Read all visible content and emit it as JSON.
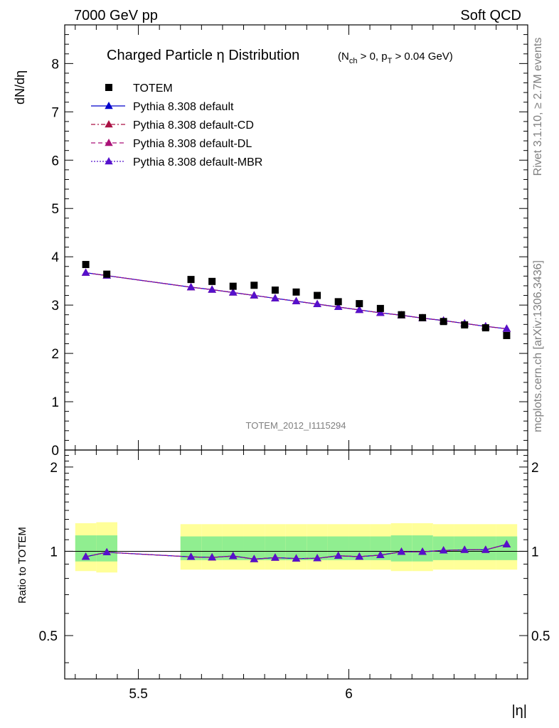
{
  "header": {
    "left": "7000 GeV pp",
    "right": "Soft QCD"
  },
  "side_label_top": "Rivet 3.1.10, ≥ 2.7M events",
  "side_label_bottom": "mcplots.cern.ch [arXiv:1306.3436]",
  "chart_data": {
    "type": "scatter",
    "title_main": "Charged Particle η Distribution",
    "title_sub": "(N_ch > 0, p_T > 0.04 GeV)",
    "title_sub_parts": {
      "n": "N",
      "ch": "ch",
      "mid": " > 0, p",
      "t": "T",
      "end": " > 0.04 GeV)",
      "open": "("
    },
    "watermark": "TOTEM_2012_I1115294",
    "xlabel": "|η|",
    "ylabel": "dN/dη",
    "ratio_ylabel": "Ratio to TOTEM",
    "xlim": [
      5.325,
      6.425
    ],
    "ylim": [
      0,
      8.8
    ],
    "ratio_ylim": [
      0.35,
      2.3
    ],
    "x_ticks": [
      "5.5",
      "6"
    ],
    "y_ticks": [
      "0",
      "1",
      "2",
      "3",
      "4",
      "5",
      "6",
      "7",
      "8"
    ],
    "ratio_ticks": [
      "0.5",
      "1",
      "2"
    ],
    "x": [
      5.375,
      5.425,
      5.625,
      5.675,
      5.725,
      5.775,
      5.825,
      5.875,
      5.925,
      5.975,
      6.025,
      6.075,
      6.125,
      6.175,
      6.225,
      6.275,
      6.325,
      6.375
    ],
    "bin_edges": [
      [
        5.35,
        5.4
      ],
      [
        5.4,
        5.45
      ],
      [
        5.6,
        5.65
      ],
      [
        5.65,
        5.7
      ],
      [
        5.7,
        5.75
      ],
      [
        5.75,
        5.8
      ],
      [
        5.8,
        5.85
      ],
      [
        5.85,
        5.9
      ],
      [
        5.9,
        5.95
      ],
      [
        5.95,
        6.0
      ],
      [
        6.0,
        6.05
      ],
      [
        6.05,
        6.1
      ],
      [
        6.1,
        6.15
      ],
      [
        6.15,
        6.2
      ],
      [
        6.2,
        6.25
      ],
      [
        6.25,
        6.3
      ],
      [
        6.3,
        6.35
      ],
      [
        6.35,
        6.4
      ]
    ],
    "series": [
      {
        "name": "TOTEM",
        "style": "data",
        "color": "#000000",
        "values": [
          3.84,
          3.64,
          3.53,
          3.49,
          3.39,
          3.41,
          3.31,
          3.27,
          3.2,
          3.07,
          3.03,
          2.93,
          2.8,
          2.74,
          2.66,
          2.59,
          2.53,
          2.37
        ]
      },
      {
        "name": "Pythia 8.308 default",
        "style": "solid",
        "color": "#0000cc",
        "values": [
          3.67,
          3.61,
          3.37,
          3.32,
          3.26,
          3.2,
          3.14,
          3.08,
          3.02,
          2.96,
          2.9,
          2.84,
          2.79,
          2.73,
          2.68,
          2.62,
          2.56,
          2.51
        ]
      },
      {
        "name": "Pythia 8.308 default-CD",
        "style": "dashdot",
        "color": "#aa1144",
        "values": [
          3.67,
          3.61,
          3.37,
          3.32,
          3.26,
          3.2,
          3.14,
          3.08,
          3.02,
          2.96,
          2.9,
          2.84,
          2.79,
          2.73,
          2.68,
          2.62,
          2.56,
          2.51
        ]
      },
      {
        "name": "Pythia 8.308 default-DL",
        "style": "dashed",
        "color": "#aa1177",
        "values": [
          3.67,
          3.61,
          3.37,
          3.32,
          3.26,
          3.2,
          3.14,
          3.08,
          3.02,
          2.96,
          2.9,
          2.84,
          2.79,
          2.73,
          2.68,
          2.62,
          2.56,
          2.51
        ]
      },
      {
        "name": "Pythia 8.308 default-MBR",
        "style": "dotted",
        "color": "#5511cc",
        "values": [
          3.67,
          3.61,
          3.37,
          3.32,
          3.26,
          3.2,
          3.14,
          3.08,
          3.02,
          2.96,
          2.9,
          2.84,
          2.79,
          2.73,
          2.68,
          2.62,
          2.56,
          2.51
        ]
      }
    ],
    "ratio_values": [
      0.956,
      0.992,
      0.955,
      0.951,
      0.962,
      0.938,
      0.949,
      0.942,
      0.944,
      0.964,
      0.957,
      0.969,
      0.996,
      0.996,
      1.007,
      1.012,
      1.012,
      1.059
    ],
    "ratio_band_stat": [
      [
        0.92,
        1.14
      ],
      [
        0.92,
        1.14
      ],
      [
        0.93,
        1.13
      ],
      [
        0.93,
        1.13
      ],
      [
        0.93,
        1.13
      ],
      [
        0.93,
        1.13
      ],
      [
        0.93,
        1.13
      ],
      [
        0.93,
        1.13
      ],
      [
        0.93,
        1.13
      ],
      [
        0.93,
        1.13
      ],
      [
        0.93,
        1.13
      ],
      [
        0.93,
        1.13
      ],
      [
        0.92,
        1.14
      ],
      [
        0.92,
        1.14
      ],
      [
        0.93,
        1.13
      ],
      [
        0.93,
        1.13
      ],
      [
        0.93,
        1.13
      ],
      [
        0.93,
        1.13
      ]
    ],
    "ratio_band_syst": [
      [
        0.85,
        1.26
      ],
      [
        0.84,
        1.27
      ],
      [
        0.86,
        1.25
      ],
      [
        0.86,
        1.25
      ],
      [
        0.86,
        1.25
      ],
      [
        0.86,
        1.25
      ],
      [
        0.86,
        1.25
      ],
      [
        0.86,
        1.25
      ],
      [
        0.86,
        1.25
      ],
      [
        0.86,
        1.25
      ],
      [
        0.86,
        1.25
      ],
      [
        0.86,
        1.25
      ],
      [
        0.85,
        1.26
      ],
      [
        0.85,
        1.26
      ],
      [
        0.86,
        1.25
      ],
      [
        0.86,
        1.25
      ],
      [
        0.86,
        1.25
      ],
      [
        0.86,
        1.25
      ]
    ],
    "ratio_band_colors": {
      "syst": "#ffff99",
      "stat": "#90ee90"
    }
  }
}
